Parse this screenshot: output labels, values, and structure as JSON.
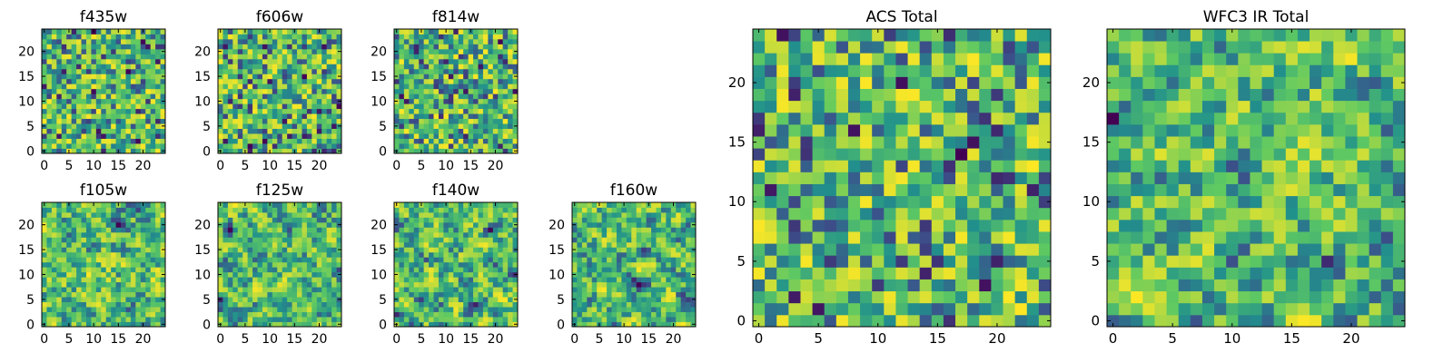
{
  "figure": {
    "colormap": [
      "#440154",
      "#3b528b",
      "#21918c",
      "#5ec962",
      "#fde725"
    ]
  },
  "chart_data": [
    {
      "type": "heatmap",
      "title": "f435w",
      "xticks": [
        "0",
        "5",
        "10",
        "15",
        "20"
      ],
      "yticks": [
        "0",
        "5",
        "10",
        "15",
        "20"
      ],
      "xlim": [
        -0.5,
        24.5
      ],
      "ylim": [
        -0.5,
        24.5
      ],
      "grid_size": 25,
      "seed": 11,
      "smooth": 0,
      "grid": false
    },
    {
      "type": "heatmap",
      "title": "f606w",
      "xticks": [
        "0",
        "5",
        "10",
        "15",
        "20"
      ],
      "yticks": [
        "0",
        "5",
        "10",
        "15",
        "20"
      ],
      "xlim": [
        -0.5,
        24.5
      ],
      "ylim": [
        -0.5,
        24.5
      ],
      "grid_size": 25,
      "seed": 23,
      "smooth": 0,
      "grid": false
    },
    {
      "type": "heatmap",
      "title": "f814w",
      "xticks": [
        "0",
        "5",
        "10",
        "15",
        "20"
      ],
      "yticks": [
        "0",
        "5",
        "10",
        "15",
        "20"
      ],
      "xlim": [
        -0.5,
        24.5
      ],
      "ylim": [
        -0.5,
        24.5
      ],
      "grid_size": 25,
      "seed": 37,
      "smooth": 0,
      "grid": false
    },
    {
      "type": "heatmap",
      "title": "f105w",
      "xticks": [
        "0",
        "5",
        "10",
        "15",
        "20"
      ],
      "yticks": [
        "0",
        "5",
        "10",
        "15",
        "20"
      ],
      "xlim": [
        -0.5,
        24.5
      ],
      "ylim": [
        -0.5,
        24.5
      ],
      "grid_size": 25,
      "seed": 41,
      "smooth": 1,
      "grid": false
    },
    {
      "type": "heatmap",
      "title": "f125w",
      "xticks": [
        "0",
        "5",
        "10",
        "15",
        "20"
      ],
      "yticks": [
        "0",
        "5",
        "10",
        "15",
        "20"
      ],
      "xlim": [
        -0.5,
        24.5
      ],
      "ylim": [
        -0.5,
        24.5
      ],
      "grid_size": 25,
      "seed": 53,
      "smooth": 1,
      "grid": false
    },
    {
      "type": "heatmap",
      "title": "f140w",
      "xticks": [
        "0",
        "5",
        "10",
        "15",
        "20"
      ],
      "yticks": [
        "0",
        "5",
        "10",
        "15",
        "20"
      ],
      "xlim": [
        -0.5,
        24.5
      ],
      "ylim": [
        -0.5,
        24.5
      ],
      "grid_size": 25,
      "seed": 67,
      "smooth": 1,
      "grid": false
    },
    {
      "type": "heatmap",
      "title": "f160w",
      "xticks": [
        "0",
        "5",
        "10",
        "15",
        "20"
      ],
      "yticks": [
        "0",
        "5",
        "10",
        "15",
        "20"
      ],
      "xlim": [
        -0.5,
        24.5
      ],
      "ylim": [
        -0.5,
        24.5
      ],
      "grid_size": 25,
      "seed": 71,
      "smooth": 1,
      "grid": false
    },
    {
      "type": "heatmap",
      "title": "ACS Total",
      "xticks": [
        "0",
        "5",
        "10",
        "15",
        "20"
      ],
      "yticks": [
        "0",
        "5",
        "10",
        "15",
        "20"
      ],
      "xlim": [
        -0.5,
        24.5
      ],
      "ylim": [
        -0.5,
        24.5
      ],
      "grid_size": 25,
      "seed": 83,
      "smooth": 0,
      "grid": false
    },
    {
      "type": "heatmap",
      "title": "WFC3 IR Total",
      "xticks": [
        "0",
        "5",
        "10",
        "15",
        "20"
      ],
      "yticks": [
        "0",
        "5",
        "10",
        "15",
        "20"
      ],
      "xlim": [
        -0.5,
        24.5
      ],
      "ylim": [
        -0.5,
        24.5
      ],
      "grid_size": 25,
      "seed": 97,
      "smooth": 1,
      "grid": false
    }
  ]
}
